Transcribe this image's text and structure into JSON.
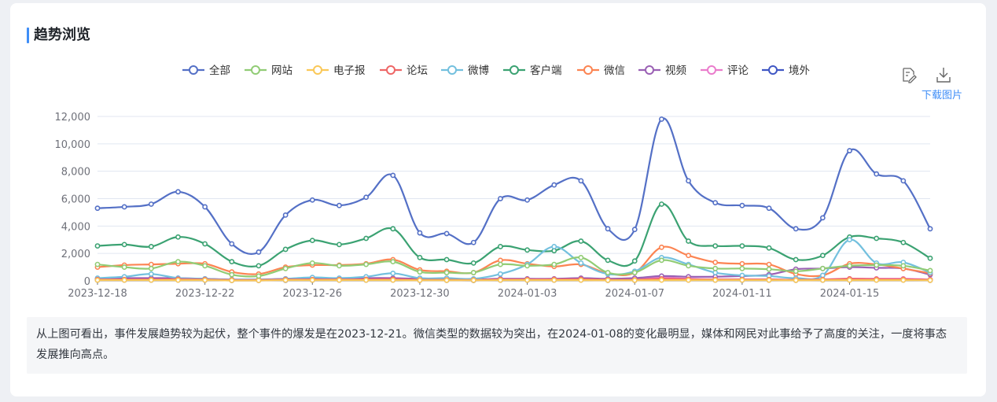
{
  "header": {
    "title": "趋势浏览"
  },
  "toolbar": {
    "download_label": "下载图片",
    "save_icon": "edit-file-icon",
    "download_icon": "download-icon"
  },
  "summary": {
    "text": "从上图可看出，事件发展趋势较为起伏，整个事件的爆发是在2023-12-21。微信类型的数据较为突出，在2024-01-08的变化最明显，媒体和网民对此事给予了高度的关注，一度将事态发展推向高点。"
  },
  "chart_data": {
    "type": "line",
    "smooth": true,
    "x": [
      "2023-12-18",
      "2023-12-19",
      "2023-12-20",
      "2023-12-21",
      "2023-12-22",
      "2023-12-23",
      "2023-12-24",
      "2023-12-25",
      "2023-12-26",
      "2023-12-27",
      "2023-12-28",
      "2023-12-29",
      "2023-12-30",
      "2023-12-31",
      "2024-01-01",
      "2024-01-02",
      "2024-01-03",
      "2024-01-04",
      "2024-01-05",
      "2024-01-06",
      "2024-01-07",
      "2024-01-08",
      "2024-01-09",
      "2024-01-10",
      "2024-01-11",
      "2024-01-12",
      "2024-01-13",
      "2024-01-14",
      "2024-01-15",
      "2024-01-16",
      "2024-01-17",
      "2024-01-18"
    ],
    "x_tick_labels": [
      "2023-12-18",
      "2023-12-22",
      "2023-12-26",
      "2023-12-30",
      "2024-01-03",
      "2024-01-07",
      "2024-01-11",
      "2024-01-15"
    ],
    "ylim": [
      0,
      12000
    ],
    "y_ticks": [
      "0",
      "2,000",
      "4,000",
      "6,000",
      "8,000",
      "10,000",
      "12,000"
    ],
    "grid": true,
    "legend_position": "top-center",
    "series": [
      {
        "name": "全部",
        "color": "#5470c6",
        "values": [
          5300,
          5400,
          5600,
          6500,
          5400,
          2700,
          2100,
          4800,
          5900,
          5500,
          6100,
          7700,
          3500,
          3450,
          2800,
          6000,
          5900,
          7000,
          7300,
          3800,
          3750,
          11800,
          7300,
          5700,
          5500,
          5300,
          3800,
          4600,
          9500,
          7800,
          7300,
          3800
        ]
      },
      {
        "name": "网站",
        "color": "#91cc75",
        "values": [
          1200,
          1000,
          900,
          1400,
          1100,
          450,
          350,
          900,
          1300,
          1100,
          1200,
          1400,
          650,
          600,
          600,
          1200,
          1100,
          1200,
          1700,
          600,
          600,
          1500,
          1100,
          900,
          900,
          850,
          700,
          900,
          1100,
          1150,
          1100,
          750
        ]
      },
      {
        "name": "电子报",
        "color": "#fac858",
        "values": [
          50,
          50,
          50,
          50,
          50,
          30,
          30,
          50,
          50,
          50,
          50,
          50,
          40,
          40,
          40,
          50,
          50,
          50,
          50,
          40,
          40,
          50,
          50,
          50,
          50,
          50,
          40,
          50,
          50,
          50,
          50,
          40
        ]
      },
      {
        "name": "论坛",
        "color": "#ee6666",
        "values": [
          100,
          100,
          100,
          120,
          100,
          60,
          60,
          100,
          100,
          100,
          110,
          120,
          80,
          80,
          70,
          100,
          100,
          110,
          120,
          80,
          80,
          150,
          120,
          100,
          100,
          100,
          80,
          100,
          150,
          130,
          120,
          80
        ]
      },
      {
        "name": "微博",
        "color": "#73c0de",
        "values": [
          200,
          300,
          500,
          200,
          150,
          80,
          80,
          150,
          250,
          200,
          300,
          550,
          200,
          200,
          150,
          500,
          1200,
          2500,
          1300,
          500,
          700,
          1700,
          1200,
          600,
          400,
          350,
          200,
          400,
          3000,
          1300,
          1350,
          600
        ]
      },
      {
        "name": "客户端",
        "color": "#3ba272",
        "values": [
          2550,
          2650,
          2500,
          3200,
          2700,
          1400,
          1100,
          2300,
          2950,
          2650,
          3100,
          3800,
          1700,
          1550,
          1300,
          2500,
          2250,
          2200,
          2900,
          1500,
          1450,
          5600,
          2900,
          2550,
          2550,
          2400,
          1550,
          1850,
          3200,
          3100,
          2800,
          1650
        ]
      },
      {
        "name": "微信",
        "color": "#fc8452",
        "values": [
          1000,
          1150,
          1200,
          1250,
          1250,
          650,
          500,
          1000,
          1150,
          1150,
          1250,
          1550,
          800,
          700,
          600,
          1500,
          1250,
          1050,
          1200,
          550,
          600,
          2450,
          1850,
          1350,
          1250,
          1200,
          500,
          400,
          1250,
          1200,
          900,
          550
        ]
      },
      {
        "name": "视频",
        "color": "#9a60b4",
        "values": [
          150,
          200,
          200,
          200,
          150,
          100,
          100,
          150,
          200,
          150,
          200,
          200,
          150,
          150,
          100,
          150,
          150,
          150,
          200,
          150,
          200,
          350,
          300,
          300,
          350,
          450,
          850,
          900,
          1000,
          950,
          900,
          450
        ]
      },
      {
        "name": "评论",
        "color": "#ea7ccc",
        "values": [
          100,
          100,
          100,
          150,
          100,
          50,
          50,
          100,
          100,
          100,
          100,
          150,
          80,
          80,
          60,
          100,
          100,
          100,
          150,
          80,
          80,
          250,
          150,
          100,
          100,
          100,
          80,
          100,
          150,
          150,
          150,
          100
        ]
      },
      {
        "name": "境外",
        "color": "#4057c4",
        "values": [
          50,
          50,
          50,
          60,
          50,
          30,
          30,
          40,
          50,
          50,
          50,
          60,
          40,
          40,
          30,
          50,
          50,
          50,
          60,
          40,
          40,
          80,
          60,
          50,
          50,
          50,
          40,
          50,
          60,
          60,
          60,
          40
        ]
      }
    ]
  }
}
